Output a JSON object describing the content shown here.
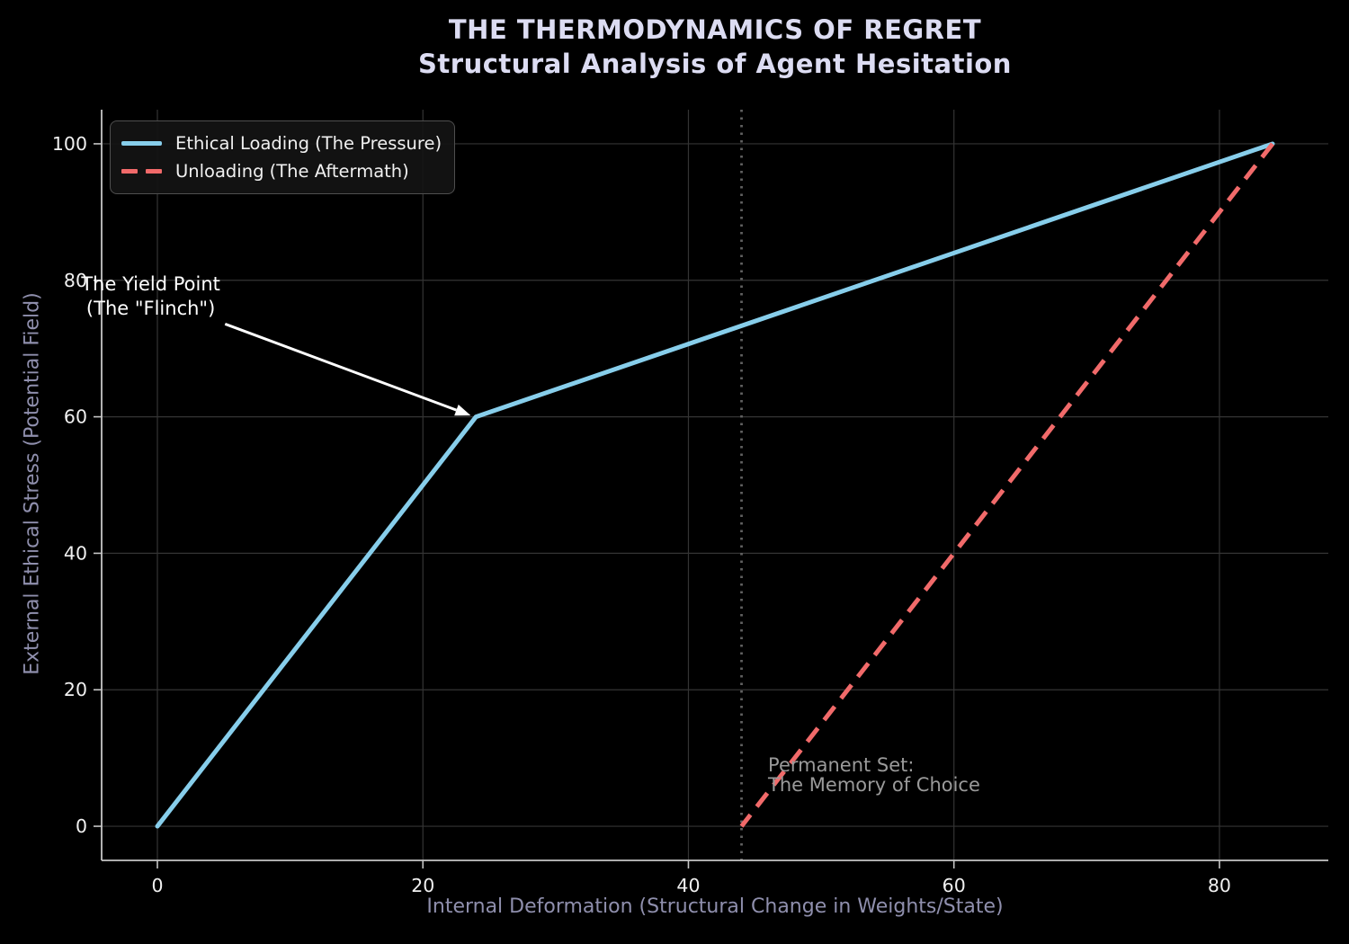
{
  "title": {
    "line1": "THE THERMODYNAMICS OF REGRET",
    "line2": "Structural Analysis of Agent Hesitation"
  },
  "chart_data": {
    "type": "line",
    "title": "THE THERMODYNAMICS OF REGRET\nStructural Analysis of Agent Hesitation",
    "xlabel": "Internal Deformation (Structural Change in Weights/State)",
    "ylabel": "External Ethical Stress (Potential Field)",
    "xlim": [
      -4.2,
      88.2
    ],
    "ylim": [
      -5,
      105
    ],
    "xticks": [
      0,
      20,
      40,
      60,
      80
    ],
    "yticks": [
      0,
      20,
      40,
      60,
      80,
      100
    ],
    "grid": true,
    "legend_position": "upper-left",
    "series": [
      {
        "name": "Ethical Loading (The Pressure)",
        "color": "#87CEEB",
        "style": "solid",
        "width": 5,
        "points": [
          [
            0,
            0
          ],
          [
            24,
            60
          ],
          [
            84,
            100
          ]
        ]
      },
      {
        "name": "Unloading (The Aftermath)",
        "color": "#F16A6A",
        "style": "dashed",
        "width": 5,
        "points": [
          [
            84,
            100
          ],
          [
            44,
            0
          ]
        ]
      }
    ],
    "vline": {
      "x": 44,
      "style": "dotted",
      "color": "#606060",
      "width": 2.8
    },
    "annotations": [
      {
        "id": "yield-point",
        "text_lines": [
          "The Yield Point",
          "(The \"Flinch\")"
        ],
        "text_xy": [
          -0.5,
          77.6
        ],
        "arrow_from": [
          5.1,
          73.6
        ],
        "arrow_to": [
          23.6,
          60.2
        ],
        "color": "#ffffff"
      },
      {
        "id": "permanent-set",
        "text_lines": [
          "Permanent Set:",
          "The Memory of Choice"
        ],
        "text_xy": [
          46.0,
          7.5
        ],
        "color": "#9a9a9a",
        "align": "left"
      }
    ]
  },
  "colors": {
    "background": "#000000",
    "title": "#dcdcf2",
    "axis_label": "#8f8fad",
    "tick_label": "#f0f0f0",
    "grid": "#343434",
    "spine": "#c6c6c6",
    "loading_line": "#87CEEB",
    "unloading_line": "#F16A6A",
    "vline": "#606060",
    "legend_border": "#4f4f4f",
    "legend_bg": "#141414"
  }
}
